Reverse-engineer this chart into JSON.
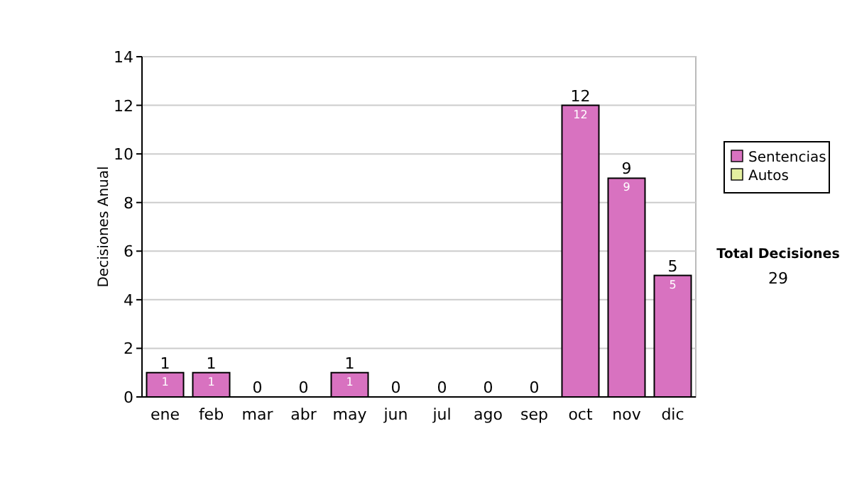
{
  "chart_data": {
    "type": "bar",
    "stacked": true,
    "ylabel": "Decisiones Anual",
    "categories": [
      "ene",
      "feb",
      "mar",
      "abr",
      "may",
      "jun",
      "jul",
      "ago",
      "sep",
      "oct",
      "nov",
      "dic"
    ],
    "series": [
      {
        "name": "Sentencias",
        "color": "#d872c0",
        "values": [
          1,
          1,
          0,
          0,
          1,
          0,
          0,
          0,
          0,
          12,
          9,
          5
        ],
        "value_labels": [
          "1",
          "1",
          null,
          null,
          "1",
          null,
          null,
          null,
          null,
          "12",
          "9",
          "5"
        ]
      },
      {
        "name": "Autos",
        "color": "#e4f0a0",
        "values": [
          0,
          0,
          0,
          0,
          0,
          0,
          0,
          0,
          0,
          0,
          0,
          0
        ]
      }
    ],
    "totals": [
      "1",
      "1",
      "0",
      "0",
      "1",
      "0",
      "0",
      "0",
      "0",
      "12",
      "9",
      "5"
    ],
    "ylim": [
      0,
      14
    ],
    "yticks": [
      0,
      2,
      4,
      6,
      8,
      10,
      12,
      14
    ],
    "grid": "y",
    "legend": "right",
    "annotations": [
      "Total Decisiones",
      "29"
    ]
  }
}
